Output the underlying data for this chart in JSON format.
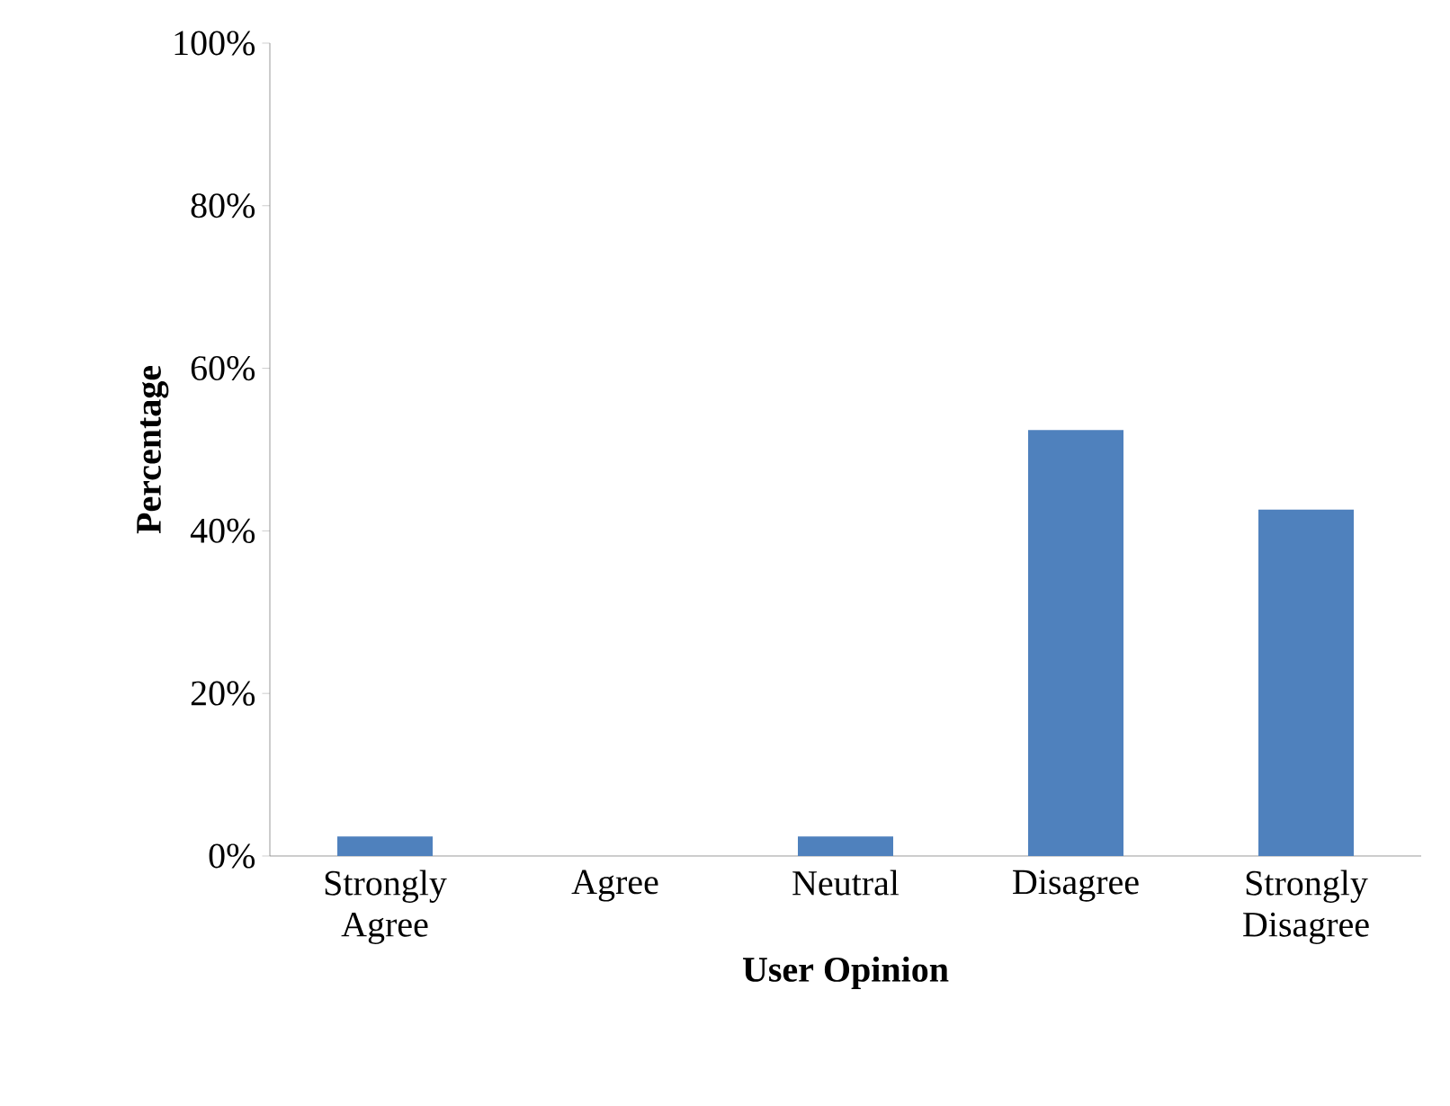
{
  "chart_data": {
    "type": "bar",
    "xlabel": "User Opinion",
    "ylabel": "Percentage",
    "categories": [
      "Strongly Agree",
      "Agree",
      "Neutral",
      "Disagree",
      "Strongly Disagree"
    ],
    "values": [
      2.4,
      0,
      2.4,
      52.4,
      42.6
    ],
    "color": "#4f81bd",
    "ylim": [
      0,
      100
    ],
    "yticks": [
      {
        "value": 0,
        "label": "0%"
      },
      {
        "value": 20,
        "label": "20%"
      },
      {
        "value": 40,
        "label": "40%"
      },
      {
        "value": 60,
        "label": "60%"
      },
      {
        "value": 80,
        "label": "80%"
      },
      {
        "value": 100,
        "label": "100%"
      }
    ],
    "grid": false
  }
}
